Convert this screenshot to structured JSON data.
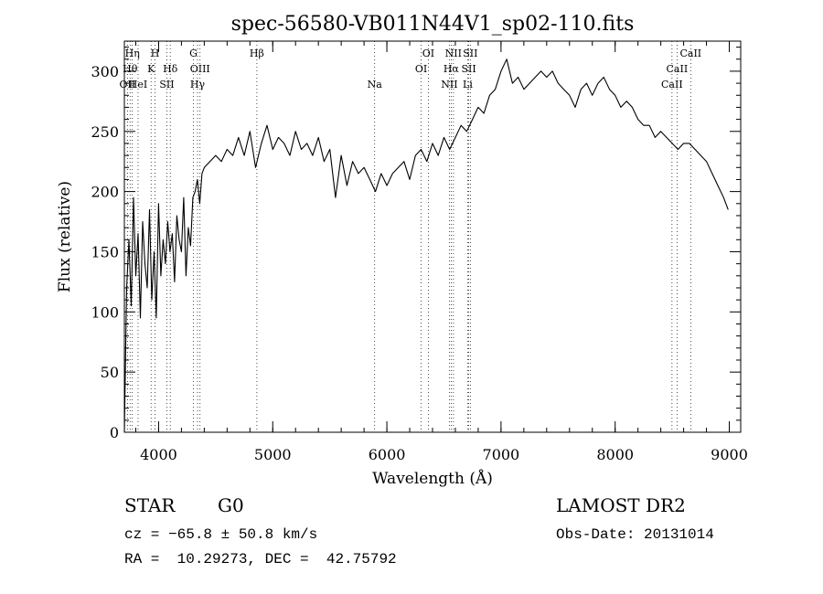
{
  "chart_data": {
    "type": "line",
    "title": "spec-56580-VB011N44V1_sp02-110.fits",
    "xlabel": "Wavelength (Å)",
    "ylabel": "Flux (relative)",
    "xlim": [
      3700,
      9100
    ],
    "ylim": [
      0,
      325
    ],
    "xticks": [
      4000,
      5000,
      6000,
      7000,
      8000,
      9000
    ],
    "yticks": [
      0,
      50,
      100,
      150,
      200,
      250,
      300
    ],
    "grid": false,
    "series": [
      {
        "x": [
          3700,
          3720,
          3740,
          3760,
          3780,
          3800,
          3820,
          3840,
          3860,
          3880,
          3900,
          3920,
          3940,
          3960,
          3980,
          4000,
          4020,
          4040,
          4060,
          4080,
          4100,
          4120,
          4140,
          4160,
          4180,
          4200,
          4220,
          4240,
          4260,
          4280,
          4300,
          4320,
          4340,
          4360,
          4380,
          4400,
          4450,
          4500,
          4550,
          4600,
          4650,
          4700,
          4750,
          4800,
          4850,
          4900,
          4950,
          5000,
          5050,
          5100,
          5150,
          5200,
          5250,
          5300,
          5350,
          5400,
          5450,
          5500,
          5550,
          5600,
          5650,
          5700,
          5750,
          5800,
          5850,
          5900,
          5950,
          6000,
          6050,
          6100,
          6150,
          6200,
          6250,
          6300,
          6350,
          6400,
          6450,
          6500,
          6550,
          6600,
          6650,
          6700,
          6750,
          6800,
          6850,
          6900,
          6950,
          7000,
          7050,
          7100,
          7150,
          7200,
          7250,
          7300,
          7350,
          7400,
          7450,
          7500,
          7550,
          7600,
          7650,
          7700,
          7750,
          7800,
          7850,
          7900,
          7950,
          8000,
          8050,
          8100,
          8150,
          8200,
          8250,
          8300,
          8350,
          8400,
          8450,
          8500,
          8550,
          8600,
          8650,
          8700,
          8750,
          8800,
          8850,
          8900,
          8950,
          8990
        ],
        "y": [
          0,
          120,
          160,
          105,
          195,
          130,
          165,
          95,
          175,
          140,
          120,
          185,
          110,
          150,
          95,
          190,
          130,
          160,
          140,
          175,
          150,
          165,
          125,
          180,
          160,
          150,
          195,
          130,
          170,
          155,
          195,
          200,
          210,
          190,
          215,
          220,
          225,
          230,
          225,
          235,
          230,
          245,
          230,
          250,
          220,
          240,
          255,
          235,
          245,
          240,
          230,
          250,
          235,
          240,
          230,
          245,
          225,
          235,
          195,
          230,
          205,
          225,
          215,
          220,
          210,
          200,
          215,
          205,
          215,
          220,
          225,
          210,
          230,
          235,
          225,
          240,
          230,
          245,
          235,
          245,
          255,
          250,
          260,
          270,
          265,
          280,
          285,
          300,
          310,
          290,
          295,
          285,
          290,
          295,
          300,
          295,
          300,
          290,
          285,
          280,
          270,
          285,
          290,
          280,
          290,
          295,
          285,
          280,
          270,
          275,
          270,
          260,
          255,
          255,
          245,
          250,
          245,
          240,
          235,
          240,
          240,
          235,
          230,
          225,
          215,
          205,
          195,
          185
        ]
      }
    ],
    "line_markers": [
      {
        "label": "OII",
        "x": 3727,
        "row": 2
      },
      {
        "label": "Hθ",
        "x": 3750,
        "row": 1
      },
      {
        "label": "Hη",
        "x": 3770,
        "row": 0
      },
      {
        "label": "HeI",
        "x": 3820,
        "row": 2
      },
      {
        "label": "K",
        "x": 3934,
        "row": 1
      },
      {
        "label": "H",
        "x": 3969,
        "row": 0
      },
      {
        "label": "SII",
        "x": 4072,
        "row": 2
      },
      {
        "label": "Hδ",
        "x": 4102,
        "row": 1
      },
      {
        "label": "Hγ",
        "x": 4341,
        "row": 2
      },
      {
        "label": "OIII",
        "x": 4363,
        "row": 1
      },
      {
        "label": "G",
        "x": 4305,
        "row": 0
      },
      {
        "label": "Hβ",
        "x": 4861,
        "row": 0
      },
      {
        "label": "Na",
        "x": 5893,
        "row": 2
      },
      {
        "label": "OI",
        "x": 6300,
        "row": 1
      },
      {
        "label": "OI",
        "x": 6363,
        "row": 0
      },
      {
        "label": "NII",
        "x": 6548,
        "row": 2
      },
      {
        "label": "Hα",
        "x": 6563,
        "row": 1
      },
      {
        "label": "NII",
        "x": 6583,
        "row": 0
      },
      {
        "label": "Li",
        "x": 6708,
        "row": 2
      },
      {
        "label": "SII",
        "x": 6717,
        "row": 1
      },
      {
        "label": "SII",
        "x": 6731,
        "row": 0
      },
      {
        "label": "CaII",
        "x": 8498,
        "row": 2
      },
      {
        "label": "CaII",
        "x": 8542,
        "row": 1
      },
      {
        "label": "CaII",
        "x": 8662,
        "row": 0
      }
    ]
  },
  "info": {
    "object_type": "STAR",
    "object_class": "G0",
    "survey": "LAMOST DR2",
    "cz": "cz = −65.8 ± 50.8 km/s",
    "obs_date": "Obs-Date: 20131014",
    "radec": "RA =  10.29273, DEC =  42.75792"
  }
}
